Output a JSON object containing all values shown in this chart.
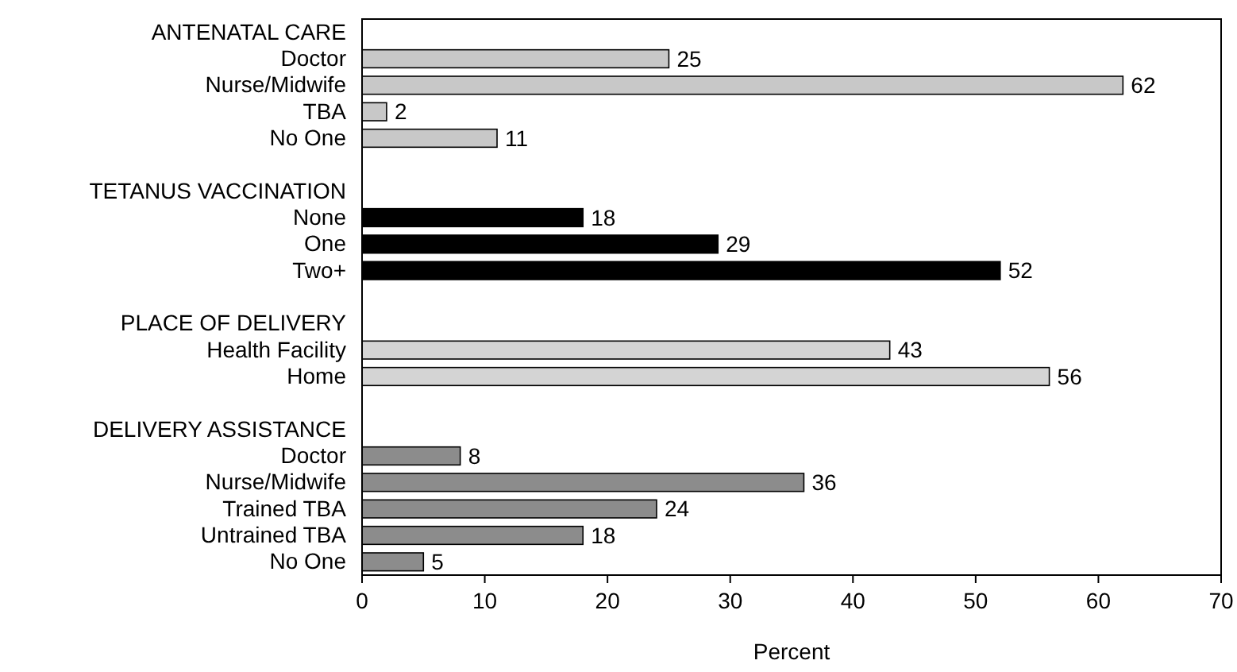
{
  "chart_data": {
    "type": "bar",
    "orientation": "horizontal",
    "xlabel": "Percent",
    "categories": [
      "ANTENATAL CARE",
      "Doctor",
      "Nurse/Midwife",
      "TBA",
      "No One",
      null,
      "TETANUS VACCINATION",
      "None",
      "One",
      "Two+",
      null,
      "PLACE OF DELIVERY",
      "Health Facility",
      "Home",
      null,
      "DELIVERY ASSISTANCE",
      "Doctor",
      "Nurse/Midwife",
      "Trained TBA",
      "Untrained TBA",
      "No One"
    ],
    "values": [
      null,
      25,
      62,
      2,
      11,
      null,
      null,
      18,
      29,
      52,
      null,
      null,
      43,
      56,
      null,
      null,
      8,
      36,
      24,
      18,
      5
    ],
    "colors": [
      null,
      "#c8c8c8",
      "#c8c8c8",
      "#c8c8c8",
      "#c8c8c8",
      null,
      null,
      "#000000",
      "#000000",
      "#000000",
      null,
      null,
      "#d4d4d4",
      "#d4d4d4",
      null,
      null,
      "#8c8c8c",
      "#8c8c8c",
      "#8c8c8c",
      "#8c8c8c",
      "#8c8c8c"
    ],
    "xlim": [
      0,
      70
    ],
    "xticks": [
      0,
      10,
      20,
      30,
      40,
      50,
      60,
      70
    ],
    "data_labels": true
  }
}
